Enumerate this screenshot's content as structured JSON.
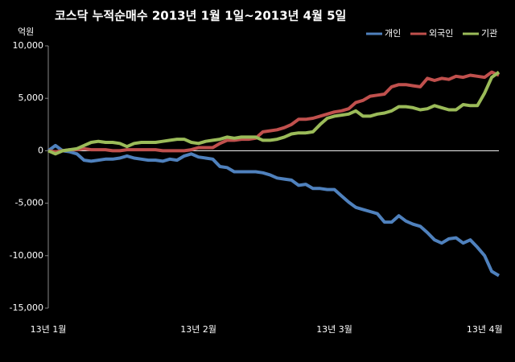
{
  "chart_data": {
    "type": "line",
    "title": "코스닥  누적순매수 2013년 1월 1일~2013년 4월 5일",
    "y_label": "억원",
    "categories": [
      "13년 1월",
      null,
      null,
      null,
      null,
      null,
      null,
      null,
      null,
      null,
      null,
      null,
      null,
      null,
      null,
      null,
      null,
      null,
      null,
      null,
      null,
      "13년 2월",
      null,
      null,
      null,
      null,
      null,
      null,
      null,
      null,
      null,
      null,
      null,
      null,
      null,
      null,
      null,
      null,
      null,
      null,
      "13년 3월",
      null,
      null,
      null,
      null,
      null,
      null,
      null,
      null,
      null,
      null,
      null,
      null,
      null,
      null,
      null,
      null,
      null,
      null,
      null,
      null,
      "13년 4월",
      null,
      null
    ],
    "series": [
      {
        "name": "개인",
        "color": "#4f81bd",
        "values": [
          0,
          500,
          0,
          -100,
          -300,
          -900,
          -1000,
          -900,
          -800,
          -800,
          -700,
          -500,
          -700,
          -800,
          -900,
          -900,
          -1000,
          -800,
          -900,
          -500,
          -300,
          -600,
          -700,
          -800,
          -1500,
          -1600,
          -2000,
          -2000,
          -2000,
          -2000,
          -2100,
          -2300,
          -2600,
          -2700,
          -2800,
          -3300,
          -3200,
          -3600,
          -3600,
          -3700,
          -3700,
          -4300,
          -4900,
          -5400,
          -5600,
          -5800,
          -6000,
          -6800,
          -6800,
          -6200,
          -6700,
          -7000,
          -7200,
          -7800,
          -8500,
          -8800,
          -8400,
          -8300,
          -8800,
          -8500,
          -9200,
          -10000,
          -11500,
          -11900
        ]
      },
      {
        "name": "외국인",
        "color": "#c0504d",
        "values": [
          0,
          -100,
          0,
          100,
          100,
          200,
          100,
          100,
          100,
          0,
          0,
          100,
          100,
          100,
          100,
          100,
          0,
          0,
          0,
          0,
          100,
          300,
          300,
          300,
          700,
          1000,
          1000,
          1100,
          1100,
          1200,
          1800,
          1900,
          2000,
          2200,
          2500,
          3000,
          3000,
          3100,
          3300,
          3500,
          3700,
          3800,
          4000,
          4600,
          4800,
          5200,
          5300,
          5400,
          6100,
          6300,
          6300,
          6200,
          6100,
          6900,
          6700,
          6900,
          6800,
          7100,
          7000,
          7200,
          7100,
          7000,
          7500,
          7200
        ]
      },
      {
        "name": "기관",
        "color": "#9bbb59",
        "values": [
          0,
          -300,
          0,
          100,
          200,
          500,
          800,
          900,
          800,
          800,
          700,
          400,
          700,
          800,
          800,
          800,
          900,
          1000,
          1100,
          1100,
          800,
          700,
          900,
          1000,
          1100,
          1300,
          1200,
          1300,
          1300,
          1300,
          1000,
          1000,
          1100,
          1300,
          1600,
          1700,
          1700,
          1800,
          2500,
          3100,
          3300,
          3400,
          3500,
          3800,
          3300,
          3300,
          3500,
          3600,
          3800,
          4200,
          4200,
          4100,
          3900,
          4000,
          4300,
          4100,
          3900,
          3900,
          4400,
          4300,
          4300,
          5500,
          7000,
          7500
        ]
      }
    ],
    "ylim": [
      -15000,
      10000
    ],
    "yticks": [
      {
        "value": 10000,
        "label": "10,000"
      },
      {
        "value": 5000,
        "label": "5,000"
      },
      0,
      {
        "value": -5000,
        "label": "-5,000"
      },
      {
        "value": -10000,
        "label": "-10,000"
      },
      {
        "value": -15000,
        "label": "-15,000"
      }
    ]
  }
}
